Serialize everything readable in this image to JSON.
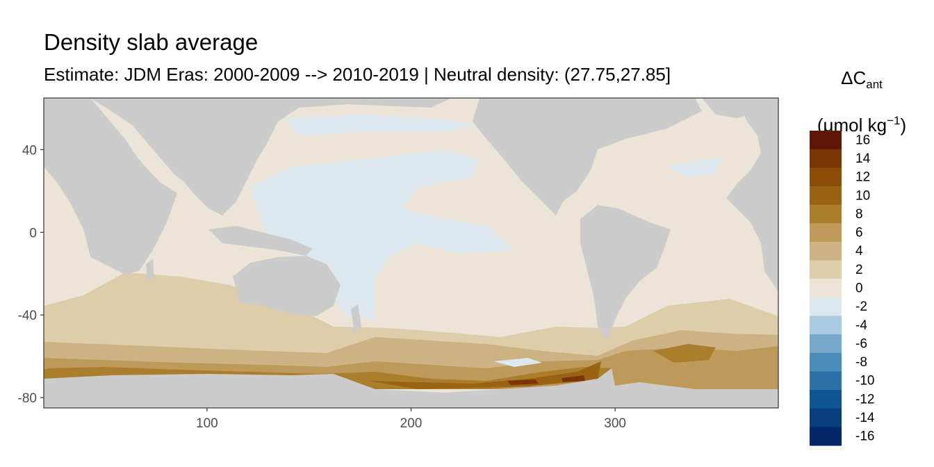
{
  "chart_data": {
    "type": "heatmap",
    "title": "Density slab average",
    "subtitle": "Estimate: JDM Eras: 2000-2009 --> 2010-2019 | Neutral density: (27.75,27.85]",
    "legend": {
      "title_main": "ΔC",
      "title_sub": "ant",
      "unit_prefix": "(μmol kg",
      "unit_sup": "−1",
      "unit_suffix": ")",
      "placement": "right",
      "bins": [
        {
          "label": "16",
          "color": "#5e1605"
        },
        {
          "label": "14",
          "color": "#7a3506"
        },
        {
          "label": "12",
          "color": "#8c4d08"
        },
        {
          "label": "10",
          "color": "#9a6314"
        },
        {
          "label": "8",
          "color": "#ab7e2e"
        },
        {
          "label": "6",
          "color": "#bd9a5a"
        },
        {
          "label": "4",
          "color": "#cdb384"
        },
        {
          "label": "2",
          "color": "#ddcdaa"
        },
        {
          "label": "0",
          "color": "#ece5d7"
        },
        {
          "label": "-2",
          "color": "#dde8ee"
        },
        {
          "label": "-4",
          "color": "#a9c9df"
        },
        {
          "label": "-6",
          "color": "#77a8cc"
        },
        {
          "label": "-8",
          "color": "#4b8cba"
        },
        {
          "label": "-10",
          "color": "#2a72a8"
        },
        {
          "label": "-12",
          "color": "#0e5693"
        },
        {
          "label": "-14",
          "color": "#083e7e"
        },
        {
          "label": "-16",
          "color": "#06266b"
        }
      ]
    },
    "x_ticks": [
      100,
      200,
      300
    ],
    "y_ticks": [
      40,
      0,
      -40,
      -80
    ],
    "xlim": [
      20,
      380
    ],
    "ylim": [
      -85,
      65
    ],
    "land_color": "#cccccc",
    "grid": false
  }
}
